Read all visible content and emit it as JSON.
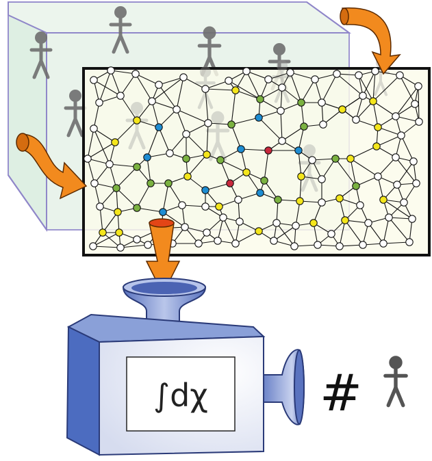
{
  "diagram": {
    "machine_formula": "∫dχ",
    "output_label": "#",
    "colors": {
      "room_fill": "#e8f3ea",
      "room_edge": "#8f86c9",
      "network_bg": "#fbfbea",
      "frame": "#111111",
      "arrow": "#f28a1e",
      "node_white": "#ffffff",
      "node_yellow": "#f4e61c",
      "node_green": "#7bb241",
      "node_blue": "#1e8dd2",
      "node_red": "#c8283c",
      "machine_front": "#f2f4fb",
      "machine_side": "#4c6cc0",
      "person_gray": "#6f6f6f"
    }
  }
}
